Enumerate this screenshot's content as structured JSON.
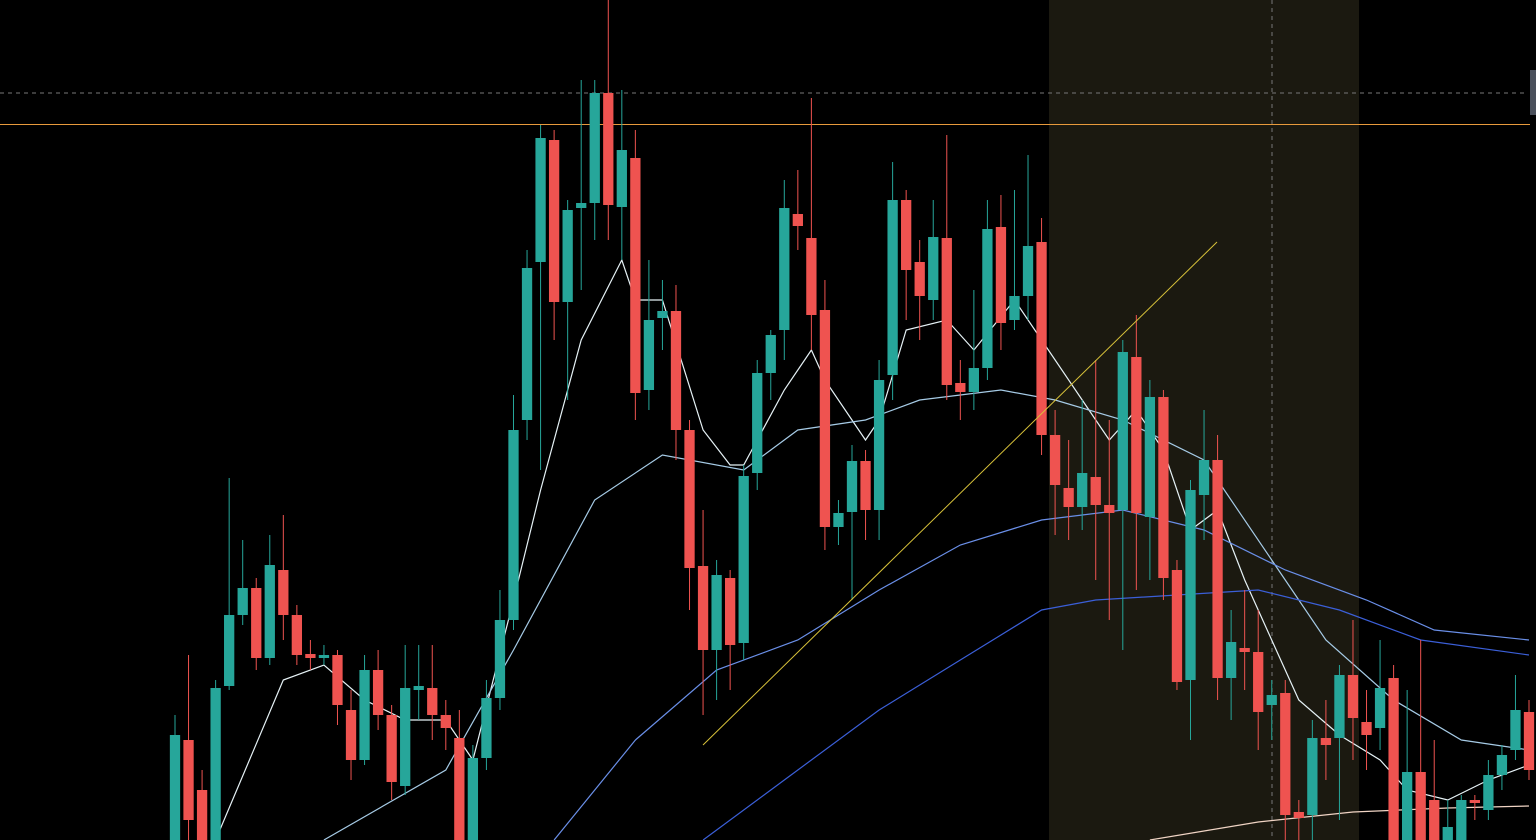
{
  "chart_data": {
    "type": "candlestick",
    "categories": [
      null,
      null,
      null,
      null,
      null,
      null,
      null,
      null,
      null,
      null,
      null,
      null,
      null,
      null,
      null,
      null,
      null,
      null,
      null,
      null,
      null,
      null,
      null,
      null,
      null,
      null,
      null,
      null,
      null,
      null,
      null,
      null,
      null,
      null,
      null,
      null,
      null,
      null,
      null,
      null,
      null,
      null,
      null,
      null,
      null,
      null,
      null,
      null,
      null,
      null,
      null,
      null,
      null,
      null,
      null,
      null,
      null,
      null,
      null,
      null,
      null,
      null,
      null,
      null,
      null,
      null,
      null,
      null,
      null,
      null,
      null,
      null,
      null,
      null,
      null,
      null,
      null,
      null,
      null,
      null,
      null,
      null,
      null,
      null,
      null,
      null,
      null,
      null,
      null,
      null,
      null,
      null,
      null,
      null,
      null,
      null,
      null,
      null,
      null,
      null,
      null
    ],
    "open": [
      0,
      100,
      50,
      0,
      154,
      225,
      252,
      182,
      270,
      225,
      186,
      182,
      185,
      130,
      80,
      170,
      125,
      54,
      150,
      152,
      125,
      102,
      0,
      82,
      142,
      220,
      420,
      578,
      700,
      538,
      632,
      637,
      747,
      633,
      682,
      450,
      522,
      529,
      410,
      274,
      190,
      262,
      197,
      367,
      467,
      510,
      626,
      602,
      530,
      313,
      328,
      379,
      330,
      465,
      640,
      578,
      540,
      602,
      457,
      448,
      472,
      613,
      520,
      544,
      598,
      405,
      352,
      333,
      363,
      335,
      330,
      483,
      323,
      443,
      270,
      160,
      345,
      380,
      162,
      192,
      188,
      135,
      147,
      28,
      25,
      102,
      102,
      165,
      118,
      112,
      162,
      0,
      68,
      40,
      0,
      0,
      40,
      30,
      65,
      90,
      128
    ],
    "high": [
      125,
      185,
      70,
      160,
      362,
      300,
      262,
      305,
      325,
      235,
      200,
      195,
      190,
      150,
      185,
      190,
      135,
      195,
      195,
      195,
      140,
      130,
      95,
      160,
      250,
      445,
      590,
      715,
      710,
      640,
      760,
      760,
      840,
      750,
      710,
      580,
      560,
      555,
      420,
      330,
      280,
      270,
      375,
      480,
      510,
      660,
      670,
      742,
      560,
      340,
      395,
      390,
      480,
      678,
      650,
      600,
      640,
      705,
      480,
      550,
      640,
      645,
      650,
      685,
      622,
      430,
      400,
      440,
      480,
      420,
      500,
      525,
      460,
      450,
      280,
      360,
      430,
      405,
      230,
      250,
      230,
      160,
      160,
      40,
      120,
      140,
      175,
      220,
      150,
      200,
      175,
      150,
      200,
      100,
      40,
      45,
      45,
      80,
      95,
      165,
      140
    ],
    "low": [
      0,
      0,
      0,
      0,
      150,
      215,
      170,
      175,
      200,
      175,
      170,
      175,
      115,
      60,
      75,
      110,
      40,
      45,
      120,
      100,
      90,
      0,
      0,
      70,
      130,
      210,
      400,
      370,
      500,
      440,
      550,
      600,
      600,
      580,
      420,
      430,
      490,
      380,
      230,
      125,
      140,
      150,
      180,
      350,
      440,
      480,
      590,
      490,
      290,
      295,
      240,
      300,
      300,
      440,
      520,
      500,
      520,
      440,
      420,
      430,
      460,
      490,
      510,
      520,
      385,
      305,
      300,
      310,
      260,
      220,
      190,
      250,
      260,
      240,
      150,
      100,
      300,
      140,
      120,
      150,
      90,
      100,
      0,
      0,
      0,
      60,
      20,
      80,
      70,
      90,
      0,
      0,
      0,
      0,
      0,
      0,
      20,
      20,
      50,
      80,
      60
    ],
    "close": [
      105,
      20,
      0,
      152,
      225,
      252,
      182,
      275,
      225,
      185,
      182,
      185,
      135,
      80,
      170,
      125,
      58,
      152,
      154,
      125,
      112,
      0,
      82,
      142,
      220,
      410,
      572,
      702,
      538,
      630,
      637,
      747,
      635,
      690,
      447,
      520,
      529,
      410,
      272,
      190,
      265,
      195,
      364,
      467,
      505,
      632,
      614,
      525,
      313,
      327,
      379,
      330,
      460,
      640,
      570,
      544,
      603,
      455,
      448,
      472,
      611,
      517,
      544,
      594,
      405,
      355,
      333,
      367,
      335,
      327,
      488,
      327,
      443,
      262,
      158,
      350,
      380,
      162,
      198,
      188,
      128,
      145,
      25,
      22,
      102,
      95,
      165,
      122,
      105,
      152,
      0,
      68,
      0,
      0,
      13,
      40,
      37,
      65,
      85,
      130,
      70
    ],
    "up_color": "#26a69a",
    "down_color": "#ef5350",
    "ylim": [
      0,
      840
    ],
    "lines": [
      {
        "color": "#e6f2f6",
        "x": [
          3,
          8,
          11,
          14,
          17,
          20,
          22,
          25,
          27,
          30,
          33,
          34,
          36,
          39,
          41,
          42,
          45,
          47,
          48,
          51,
          52,
          54,
          57,
          59,
          62,
          64,
          67,
          69,
          71,
          73,
          75,
          77,
          79,
          81,
          83,
          86,
          89,
          91,
          94,
          97,
          100
        ],
        "values": [
          0,
          160,
          175,
          140,
          120,
          120,
          80,
          240,
          350,
          500,
          580,
          540,
          540,
          410,
          375,
          375,
          450,
          490,
          460,
          400,
          420,
          510,
          520,
          490,
          540,
          500,
          440,
          400,
          430,
          390,
          310,
          330,
          260,
          200,
          140,
          105,
          80,
          50,
          40,
          60,
          75
        ]
      },
      {
        "color": "#a6cbe6",
        "x": [
          11,
          20,
          25,
          31,
          36,
          42,
          46,
          51,
          55,
          61,
          65,
          70,
          76,
          81,
          85,
          90,
          95,
          100
        ],
        "values": [
          0,
          70,
          190,
          340,
          385,
          370,
          410,
          420,
          440,
          450,
          440,
          420,
          380,
          280,
          200,
          140,
          100,
          90
        ]
      },
      {
        "color": "#6a8fe8",
        "x": [
          28,
          34,
          40,
          46,
          52,
          58,
          64,
          70,
          76,
          82,
          88,
          93,
          100
        ],
        "values": [
          0,
          100,
          170,
          200,
          250,
          295,
          320,
          330,
          310,
          270,
          240,
          210,
          200
        ]
      },
      {
        "color": "#3b5fd8",
        "x": [
          39,
          45,
          52,
          58,
          64,
          68,
          74,
          80,
          86,
          92,
          100
        ],
        "values": [
          0,
          60,
          130,
          180,
          230,
          240,
          245,
          250,
          230,
          200,
          185
        ]
      },
      {
        "color": "#f0d4c4",
        "x": [
          72,
          80,
          87,
          94,
          100
        ],
        "values": [
          0,
          18,
          28,
          32,
          34
        ]
      }
    ]
  }
}
